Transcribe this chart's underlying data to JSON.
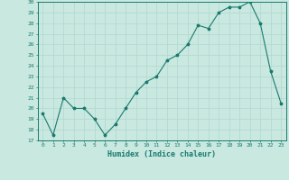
{
  "x": [
    0,
    1,
    2,
    3,
    4,
    5,
    6,
    7,
    8,
    9,
    10,
    11,
    12,
    13,
    14,
    15,
    16,
    17,
    18,
    19,
    20,
    21,
    22,
    23
  ],
  "y": [
    19.5,
    17.5,
    21.0,
    20.0,
    20.0,
    19.0,
    17.5,
    18.5,
    20.0,
    21.5,
    22.5,
    23.0,
    24.5,
    25.0,
    26.0,
    27.8,
    27.5,
    29.0,
    29.5,
    29.5,
    30.0,
    28.0,
    23.5,
    20.5
  ],
  "xlabel": "Humidex (Indice chaleur)",
  "ylim": [
    17,
    30
  ],
  "xlim": [
    -0.5,
    23.5
  ],
  "yticks": [
    17,
    18,
    19,
    20,
    21,
    22,
    23,
    24,
    25,
    26,
    27,
    28,
    29,
    30
  ],
  "xticks": [
    0,
    1,
    2,
    3,
    4,
    5,
    6,
    7,
    8,
    9,
    10,
    11,
    12,
    13,
    14,
    15,
    16,
    17,
    18,
    19,
    20,
    21,
    22,
    23
  ],
  "line_color": "#1a7a6e",
  "marker": "*",
  "bg_color": "#c8e8e0",
  "grid_color": "#b0d8d0",
  "font_family": "monospace",
  "tick_fontsize": 4.5,
  "xlabel_fontsize": 6.0
}
